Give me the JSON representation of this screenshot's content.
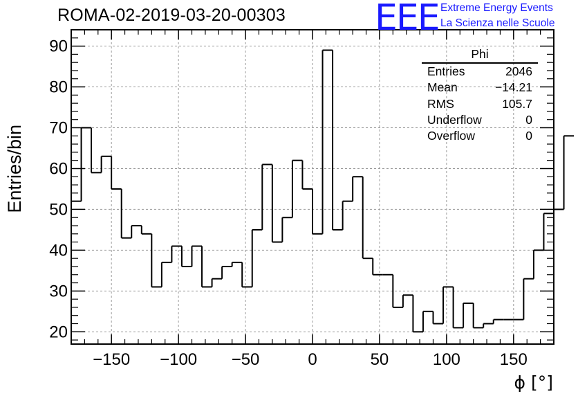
{
  "header": {
    "run_title": "ROMA-02-2019-03-20-00303",
    "logo_text": "EEE",
    "logo_line1": "Extreme Energy Events",
    "logo_line2": "La Scienza nelle Scuole"
  },
  "stats_box": {
    "title": "Phi",
    "rows": [
      {
        "label": "Entries",
        "value": "2046"
      },
      {
        "label": "Mean",
        "value": "−14.21"
      },
      {
        "label": "RMS",
        "value": "105.7"
      },
      {
        "label": "Underflow",
        "value": "0"
      },
      {
        "label": "Overflow",
        "value": "0"
      }
    ]
  },
  "colors": {
    "line": "#000000",
    "grid": "#9a9a9a",
    "logo": "#1a1aff"
  },
  "chart_data": {
    "type": "histogram",
    "title": "ROMA-02-2019-03-20-00303",
    "xlabel": "ϕ [°]",
    "ylabel": "Entries/bin",
    "xlim": [
      -180,
      180
    ],
    "ylim": [
      17,
      94
    ],
    "xticks": [
      -150,
      -100,
      -50,
      0,
      50,
      100,
      150
    ],
    "xtick_labels": [
      "−150",
      "−100",
      "−50",
      "0",
      "50",
      "100",
      "150"
    ],
    "yticks": [
      20,
      30,
      40,
      50,
      60,
      70,
      80,
      90
    ],
    "ytick_labels": [
      "20",
      "30",
      "40",
      "50",
      "60",
      "70",
      "80",
      "90"
    ],
    "grid": true,
    "bin_width": 7.5,
    "bin_start": -180,
    "values": [
      52,
      70,
      59,
      63,
      55,
      43,
      46,
      44,
      31,
      37,
      41,
      36,
      41,
      31,
      33,
      36,
      37,
      31,
      45,
      61,
      42,
      48,
      62,
      55,
      44,
      89,
      45,
      52,
      58,
      38,
      34,
      34,
      26,
      29,
      20,
      25,
      22,
      31,
      21,
      27,
      21,
      22,
      23,
      23,
      23,
      33,
      40,
      49,
      50,
      68
    ]
  }
}
